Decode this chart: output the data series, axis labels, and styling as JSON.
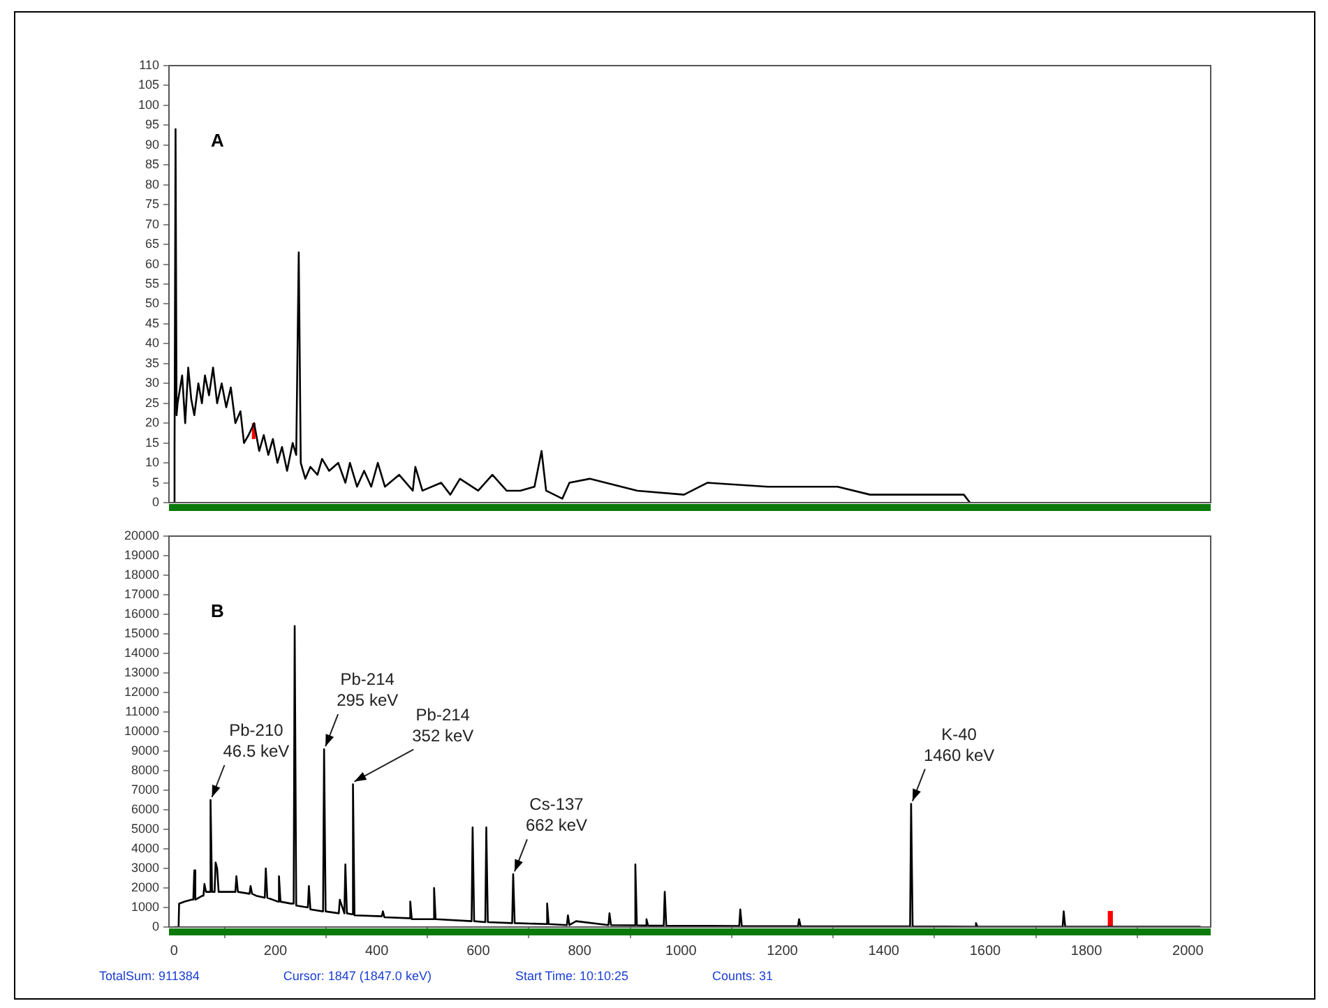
{
  "chart_data": [
    {
      "type": "line",
      "title": "A",
      "xlim": [
        -10,
        2045
      ],
      "ylim": [
        0,
        110
      ],
      "yticks": [
        0,
        5,
        10,
        15,
        20,
        25,
        30,
        35,
        40,
        45,
        50,
        55,
        60,
        65,
        70,
        75,
        80,
        85,
        90,
        95,
        100,
        105,
        110
      ],
      "tick_labels": "y",
      "series": [
        {
          "color": "#000000",
          "x": [
            0,
            1,
            3,
            5,
            7,
            16,
            22,
            28,
            34,
            40,
            48,
            55,
            61,
            69,
            77,
            85,
            94,
            103,
            112,
            121,
            131,
            138,
            147,
            158,
            168,
            177,
            186,
            195,
            204,
            213,
            223,
            234,
            241,
            246,
            250,
            259,
            269,
            283,
            292,
            306,
            324,
            338,
            347,
            361,
            375,
            389,
            402,
            416,
            444,
            471,
            476,
            490,
            527,
            545,
            564,
            600,
            628,
            656,
            683,
            711,
            725,
            734,
            766,
            780,
            820,
            914,
            1006,
            1052,
            1171,
            1309,
            1373,
            1558,
            1570
          ],
          "values": [
            0,
            13,
            94,
            22,
            25,
            32,
            20,
            34,
            26,
            22,
            30,
            25,
            32,
            27,
            34,
            25,
            30,
            24,
            29,
            20,
            23,
            15,
            17,
            20,
            13,
            17,
            12,
            16,
            10,
            14,
            8,
            15,
            12,
            63,
            10,
            6,
            9,
            7,
            11,
            8,
            10,
            5,
            10,
            4,
            8,
            4,
            10,
            4,
            7,
            3,
            9,
            3,
            5,
            2,
            6,
            3,
            7,
            3,
            3,
            4,
            13,
            3,
            1,
            5,
            6,
            3,
            2,
            5,
            4,
            4,
            2,
            2,
            0
          ]
        },
        {
          "color": "#ff0000",
          "x": [
            157,
            157
          ],
          "values": [
            16,
            20
          ]
        }
      ]
    },
    {
      "type": "line",
      "title": "B",
      "xlim": [
        -10,
        2045
      ],
      "ylim": [
        0,
        20000
      ],
      "xticks": [
        0,
        200,
        400,
        600,
        800,
        1000,
        1200,
        1400,
        1600,
        1800,
        2000
      ],
      "yticks": [
        0,
        1000,
        2000,
        3000,
        4000,
        5000,
        6000,
        7000,
        8000,
        9000,
        10000,
        11000,
        12000,
        13000,
        14000,
        15000,
        16000,
        17000,
        18000,
        19000,
        20000
      ],
      "series": [
        {
          "color": "#000000",
          "x": [
            0,
            9,
            10,
            21,
            35,
            38,
            40,
            42,
            56,
            58,
            60,
            63,
            66,
            68,
            70,
            72,
            75,
            80,
            82,
            85,
            88,
            92,
            106,
            121,
            123,
            126,
            149,
            151,
            154,
            162,
            179,
            181,
            184,
            205,
            207,
            210,
            230,
            236,
            238,
            241,
            264,
            266,
            269,
            294,
            296,
            299,
            325,
            327,
            336,
            338,
            341,
            351,
            353,
            356,
            410,
            412,
            415,
            464,
            466,
            469,
            511,
            513,
            516,
            587,
            589,
            592,
            614,
            616,
            619,
            667,
            669,
            672,
            734,
            736,
            739,
            775,
            777,
            780,
            793,
            857,
            859,
            862,
            908,
            910,
            913,
            930,
            932,
            935,
            966,
            968,
            971,
            1115,
            1117,
            1120,
            1231,
            1233,
            1236,
            1452,
            1454,
            1457,
            1580,
            1582,
            1585,
            1753,
            1755,
            1758,
            2025
          ],
          "values": [
            0,
            0,
            1200,
            1300,
            1400,
            1400,
            2900,
            1400,
            1600,
            1600,
            2200,
            1800,
            1800,
            1800,
            1800,
            6500,
            1800,
            1800,
            3300,
            3000,
            1800,
            1800,
            1800,
            1800,
            2600,
            1800,
            1700,
            2100,
            1700,
            1600,
            1500,
            3000,
            1500,
            1300,
            2600,
            1300,
            1200,
            1200,
            15400,
            1100,
            1000,
            2100,
            900,
            800,
            9100,
            800,
            700,
            1400,
            700,
            3200,
            700,
            650,
            7300,
            600,
            550,
            800,
            500,
            450,
            1300,
            400,
            400,
            2000,
            400,
            300,
            5100,
            300,
            250,
            5100,
            250,
            200,
            2700,
            200,
            150,
            1200,
            150,
            100,
            600,
            100,
            300,
            100,
            700,
            100,
            90,
            3200,
            90,
            80,
            400,
            80,
            70,
            1800,
            70,
            50,
            900,
            50,
            40,
            400,
            40,
            30,
            6300,
            30,
            20,
            200,
            20,
            20,
            800,
            20,
            20
          ]
        },
        {
          "type": "bar",
          "color": "#ff0000",
          "x": [
            1847
          ],
          "values": [
            800
          ]
        }
      ],
      "annotations": [
        {
          "text": "Pb-210\n46.5 keV",
          "x": 72,
          "y": 6500
        },
        {
          "text": "Pb-214\n295 keV",
          "x": 296,
          "y": 9100
        },
        {
          "text": "Pb-214\n352 keV",
          "x": 353,
          "y": 7300
        },
        {
          "text": "Cs-137\n662 keV",
          "x": 669,
          "y": 2700
        },
        {
          "text": "K-40\n1460 keV",
          "x": 1454,
          "y": 6300
        },
        "TotalSum:   911384",
        "Cursor:   1847 (1847.0  keV)",
        "Start Time: 10:10:25",
        "Counts:   31"
      ]
    }
  ]
}
